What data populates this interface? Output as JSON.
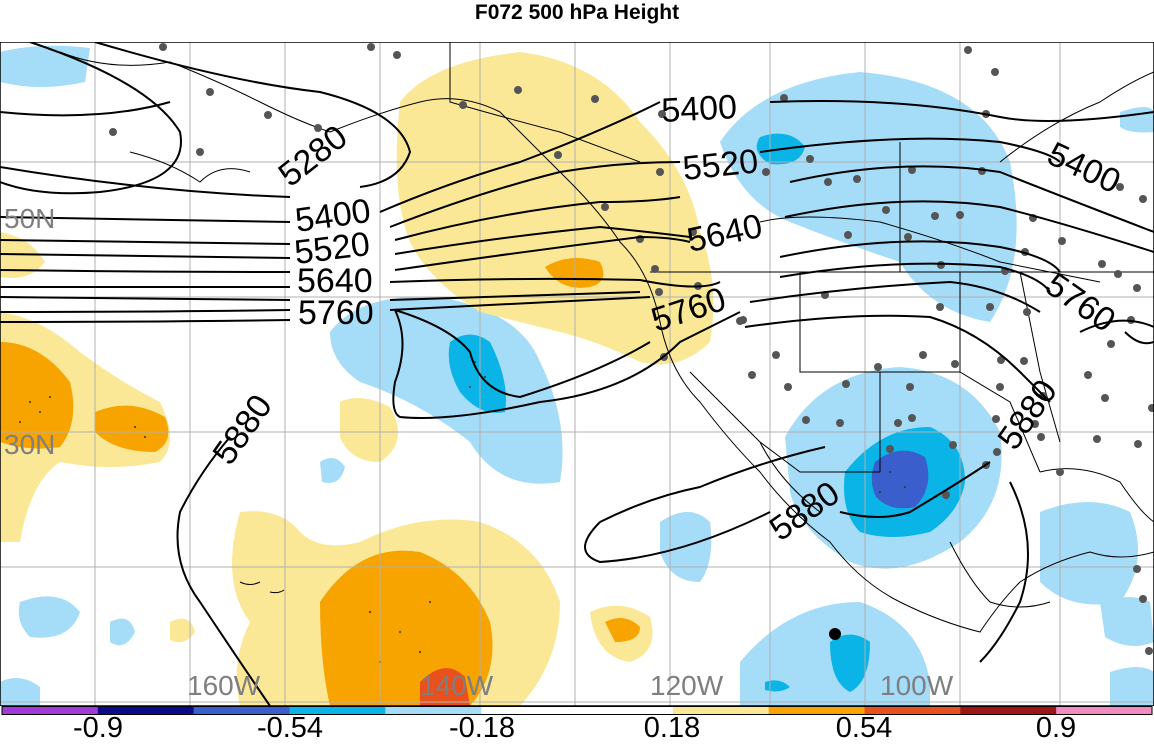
{
  "title": "F072 500 hPa Height",
  "map": {
    "lon_labels": [
      {
        "text": "160W"
      },
      {
        "text": "140W"
      },
      {
        "text": "120W"
      },
      {
        "text": "100W"
      }
    ],
    "lat_labels": [
      {
        "text": "50N"
      },
      {
        "text": "30N"
      }
    ],
    "contour_labels": [
      {
        "text": "5280"
      },
      {
        "text": "5400"
      },
      {
        "text": "5520"
      },
      {
        "text": "5640"
      },
      {
        "text": "5760"
      },
      {
        "text": "5880"
      },
      {
        "text": "5400"
      },
      {
        "text": "5520"
      },
      {
        "text": "5640"
      },
      {
        "text": "5760"
      },
      {
        "text": "5400"
      },
      {
        "text": "5760"
      },
      {
        "text": "5880"
      },
      {
        "text": "5880"
      }
    ],
    "label_color": "#7f7f7f"
  },
  "colorbar": {
    "colors": [
      "#a13ad6",
      "#0a0a8c",
      "#3a5fcd",
      "#0ab4e6",
      "#a5dcf8",
      "#ffffff",
      "#ffffff",
      "#fbe897",
      "#f7a300",
      "#e8501d",
      "#a01414",
      "#f28cc0"
    ],
    "tick_labels": [
      "-0.9",
      "-0.54",
      "-0.18",
      "0.18",
      "0.54",
      "0.9"
    ]
  }
}
